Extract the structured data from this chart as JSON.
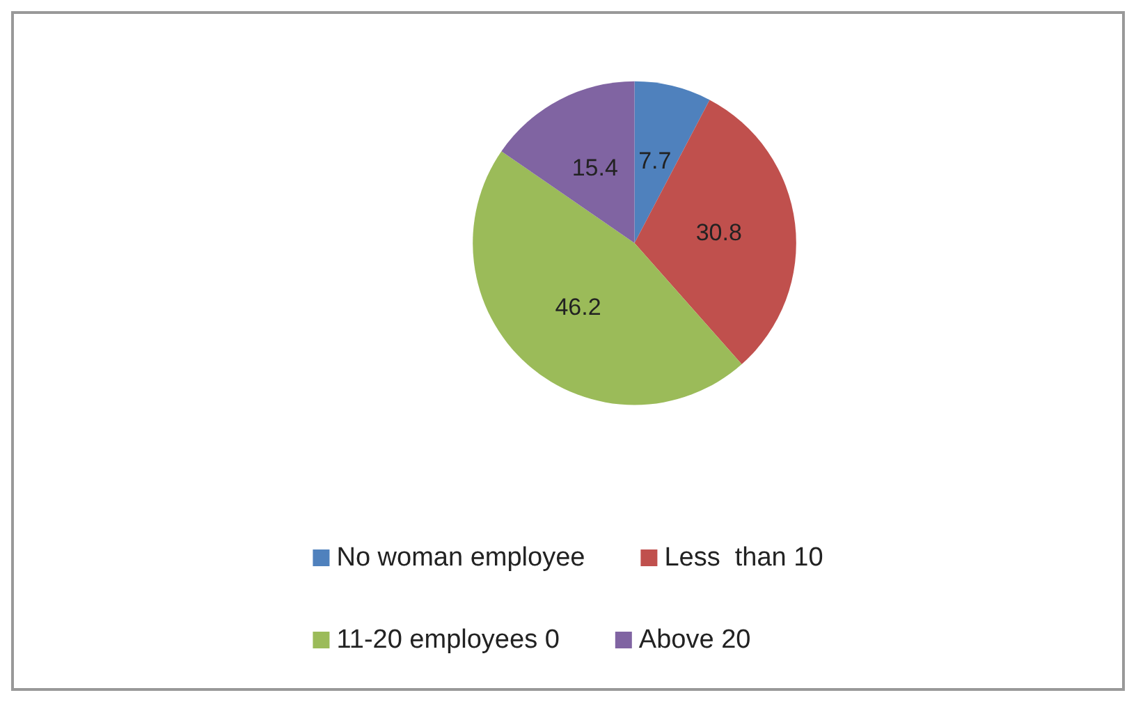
{
  "chart_data": {
    "type": "pie",
    "categories": [
      "No woman employee",
      "Less  than 10",
      "11-20 employees 0",
      "Above 20"
    ],
    "values": [
      7.7,
      30.8,
      46.2,
      15.4
    ],
    "colors": [
      "#4f81bd",
      "#c0504d",
      "#9bbb59",
      "#8064a2"
    ],
    "data_labels": true,
    "legend": "bottom"
  }
}
